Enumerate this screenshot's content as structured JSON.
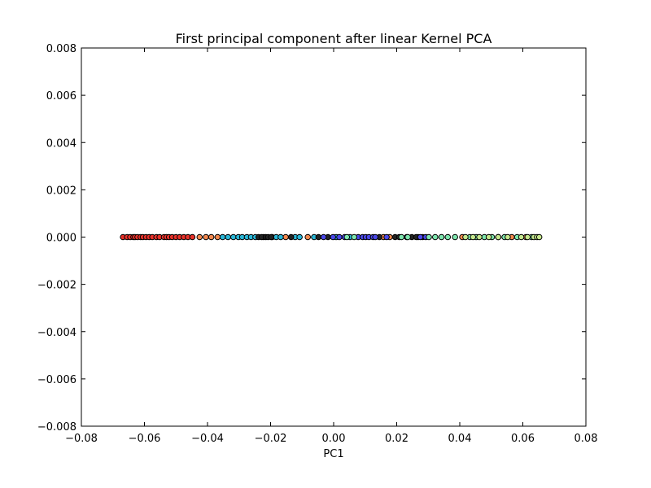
{
  "chart_data": {
    "type": "scatter",
    "title": "First principal component after linear Kernel PCA",
    "xlabel": "PC1",
    "ylabel": "",
    "xlim": [
      -0.08,
      0.08
    ],
    "ylim": [
      -0.008,
      0.008
    ],
    "x_ticks": [
      "−0.08",
      "−0.06",
      "−0.04",
      "−0.02",
      "0.00",
      "0.02",
      "0.04",
      "0.06",
      "0.08"
    ],
    "y_ticks": [
      "−0.008",
      "−0.006",
      "−0.004",
      "−0.002",
      "0.000",
      "0.002",
      "0.004",
      "0.006",
      "0.008"
    ],
    "grid": false,
    "legend": "none",
    "marker_edge_color": "#000000",
    "series": [
      {
        "color": "#e8322a",
        "x": [
          -0.0668,
          -0.0655,
          -0.0645,
          -0.0635,
          -0.063,
          -0.0622,
          -0.0612,
          -0.0605,
          -0.0595,
          -0.0585,
          -0.0575,
          -0.0562,
          -0.0552,
          -0.0538,
          -0.053,
          -0.0522,
          -0.0512,
          -0.05,
          -0.0488,
          -0.0475,
          -0.0462,
          -0.0448
        ],
        "y": [
          0,
          0,
          0,
          0,
          0,
          0,
          0,
          0,
          0,
          0,
          0,
          0,
          0,
          0,
          0,
          0,
          0,
          0,
          0,
          0,
          0,
          0
        ]
      },
      {
        "color": "#f4894f",
        "x": [
          -0.0425,
          -0.0405,
          -0.0388,
          -0.0368,
          -0.0222,
          -0.0152,
          -0.0082,
          0.0158,
          0.0178,
          0.0408,
          0.0522,
          0.0565,
          0.061
        ],
        "y": [
          0,
          0,
          0,
          0,
          0,
          0,
          0,
          0,
          0,
          0,
          0,
          0,
          0
        ]
      },
      {
        "color": "#2ab6d6",
        "x": [
          -0.0352,
          -0.0335,
          -0.0318,
          -0.0302,
          -0.029,
          -0.0275,
          -0.0262,
          -0.0248,
          -0.0195,
          -0.0182,
          -0.0168,
          -0.0122,
          -0.0108,
          -0.0062,
          0.0008,
          0.0052,
          0.0268
        ],
        "y": [
          0,
          0,
          0,
          0,
          0,
          0,
          0,
          0,
          0,
          0,
          0,
          0,
          0,
          0,
          0,
          0,
          0
        ]
      },
      {
        "color": "#222222",
        "x": [
          -0.0238,
          -0.0228,
          -0.0215,
          -0.0208,
          -0.0198,
          -0.0135,
          -0.0048,
          -0.0018,
          0.0145,
          0.0195,
          0.0208,
          0.0248,
          0.0262,
          0.0282
        ],
        "y": [
          0,
          0,
          0,
          0,
          0,
          0,
          0,
          0,
          0,
          0,
          0,
          0,
          0,
          0
        ]
      },
      {
        "color": "#4a48e8",
        "x": [
          -0.0032,
          -0.0002,
          0.0018,
          0.0035,
          0.0078,
          0.0092,
          0.0102,
          0.0112,
          0.0125,
          0.0132,
          0.0168,
          0.0232,
          0.0275,
          0.0292
        ],
        "y": [
          0,
          0,
          0,
          0,
          0,
          0,
          0,
          0,
          0,
          0,
          0,
          0,
          0,
          0
        ]
      },
      {
        "color": "#7ee6ae",
        "x": [
          0.0042,
          0.0065,
          0.0215,
          0.0235,
          0.0302,
          0.0322,
          0.0342,
          0.0362,
          0.0385,
          0.0432,
          0.0452,
          0.0478,
          0.0502,
          0.0542,
          0.0582,
          0.0628
        ],
        "y": [
          0,
          0,
          0,
          0,
          0,
          0,
          0,
          0,
          0,
          0,
          0,
          0,
          0,
          0,
          0,
          0
        ]
      },
      {
        "color": "#c6e88e",
        "x": [
          0.0418,
          0.0442,
          0.0462,
          0.0492,
          0.0522,
          0.0552,
          0.0595,
          0.0615,
          0.0635,
          0.0645,
          0.0652
        ],
        "y": [
          0,
          0,
          0,
          0,
          0,
          0,
          0,
          0,
          0,
          0,
          0
        ]
      }
    ]
  }
}
